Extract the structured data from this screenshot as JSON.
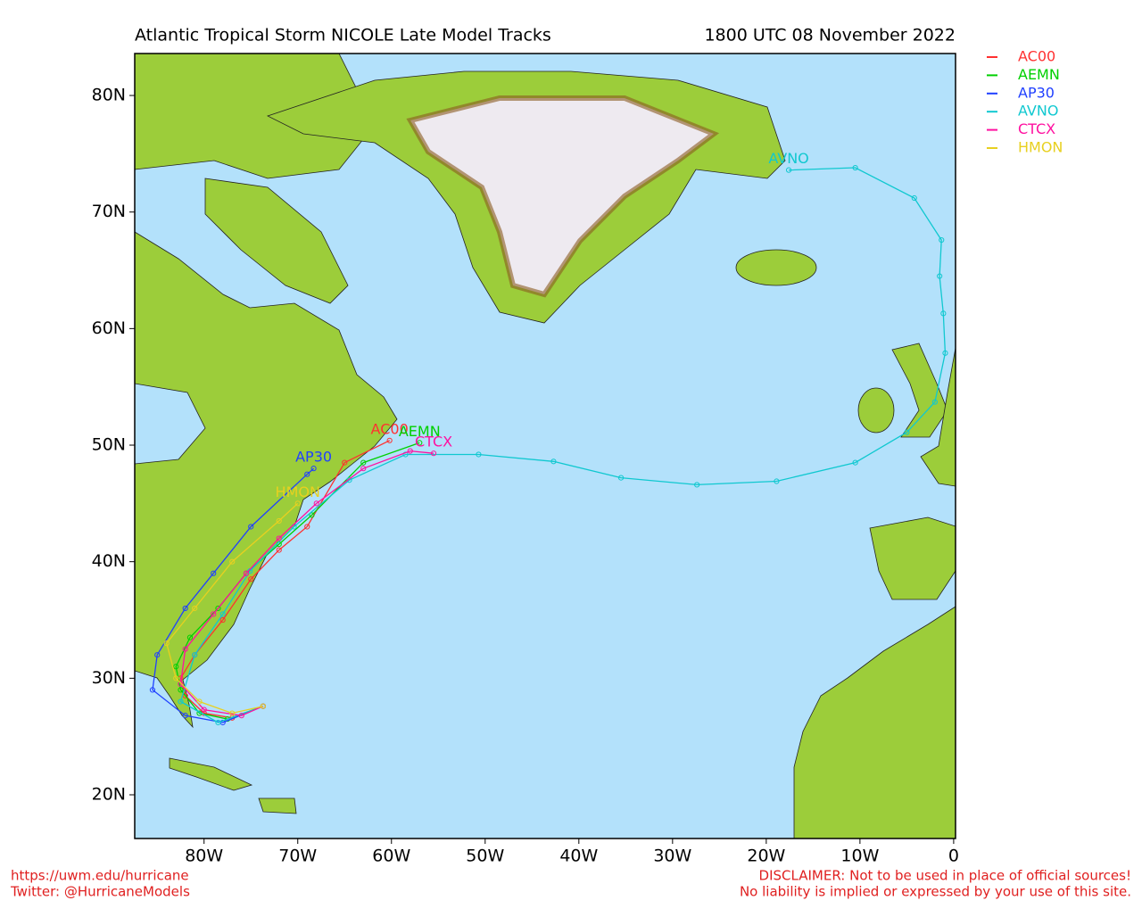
{
  "chart_data": {
    "type": "map",
    "title": "Atlantic Tropical Storm NICOLE Late Model Tracks",
    "date": "1800 UTC 08 November 2022",
    "xlim": [
      -87.4,
      0.2
    ],
    "ylim": [
      16.25,
      83.6
    ],
    "xticks": [
      {
        "value": -80,
        "label": "80W"
      },
      {
        "value": -70,
        "label": "70W"
      },
      {
        "value": -60,
        "label": "60W"
      },
      {
        "value": -50,
        "label": "50W"
      },
      {
        "value": -40,
        "label": "40W"
      },
      {
        "value": -30,
        "label": "30W"
      },
      {
        "value": -20,
        "label": "20W"
      },
      {
        "value": -10,
        "label": "10W"
      },
      0
    ],
    "yticks": [
      {
        "value": 20,
        "label": "20N"
      },
      {
        "value": 30,
        "label": "30N"
      },
      {
        "value": 40,
        "label": "40N"
      },
      {
        "value": 50,
        "label": "50N"
      },
      {
        "value": 60,
        "label": "60N"
      },
      {
        "value": 70,
        "label": "70N"
      },
      {
        "value": 80,
        "label": "80N"
      }
    ],
    "series": [
      {
        "name": "AC00",
        "color": "#ff3030",
        "x": [
          -73.7,
          -77,
          -80,
          -82,
          -82.5,
          -81,
          -78,
          -75,
          -72,
          -69,
          -65,
          -60.2
        ],
        "y": [
          27.6,
          26.6,
          27,
          28.5,
          30,
          32,
          35,
          38.5,
          41,
          43,
          48.5,
          50.4
        ]
      },
      {
        "name": "AEMN",
        "color": "#00d000",
        "x": [
          -73.7,
          -77.5,
          -80.5,
          -82.5,
          -83,
          -81.5,
          -78.5,
          -75.5,
          -72,
          -68.5,
          -63,
          -57
        ],
        "y": [
          27.6,
          26.5,
          27,
          29,
          31,
          33.5,
          36,
          39,
          41.5,
          44,
          48.5,
          50.2
        ]
      },
      {
        "name": "AP30",
        "color": "#2040ff",
        "x": [
          -73.7,
          -78,
          -82,
          -85.5,
          -85,
          -82,
          -79,
          -75,
          -69,
          -68.3
        ],
        "y": [
          27.6,
          26.2,
          26.8,
          29,
          32,
          36,
          39,
          43,
          47.5,
          48
        ]
      },
      {
        "name": "AVNO",
        "color": "#10c8d0",
        "x": [
          -73.7,
          -78.5,
          -82.5,
          -81,
          -78,
          -75.1,
          -70.4,
          -64.5,
          -58.5,
          -50.7,
          -42.7,
          -35.5,
          -27.4,
          -18.9,
          -10.5,
          -5.0,
          -2.0,
          -0.9,
          -1.1,
          -1.5,
          -1.3,
          -4.2,
          -10.5,
          -17.6
        ],
        "y": [
          27.6,
          26.2,
          28,
          32,
          35.5,
          39.2,
          43,
          47,
          49.2,
          49.2,
          48.6,
          47.2,
          46.6,
          46.9,
          48.5,
          51.1,
          53.7,
          57.9,
          61.3,
          64.5,
          67.6,
          71.2,
          73.8,
          73.6
        ]
      },
      {
        "name": "CTCX",
        "color": "#ff10a0",
        "x": [
          -73.7,
          -76,
          -80,
          -82.5,
          -82,
          -79,
          -75.5,
          -72,
          -68,
          -63,
          -58,
          -55.5
        ],
        "y": [
          27.6,
          26.8,
          27.3,
          29.5,
          32.5,
          35.5,
          39,
          42,
          45,
          48,
          49.5,
          49.3
        ]
      },
      {
        "name": "HMON",
        "color": "#e8d020",
        "x": [
          -73.7,
          -77,
          -80.5,
          -83,
          -84,
          -81,
          -77,
          -72,
          -70
        ],
        "y": [
          27.6,
          27,
          28,
          30,
          33,
          36,
          40,
          43.5,
          45
        ]
      }
    ],
    "footer_left": [
      "https://uwm.edu/hurricane",
      "Twitter: @HurricaneModels"
    ],
    "footer_right": [
      "DISCLAIMER: Not to be used in place of official sources!",
      "No liability is implied or expressed by your use of this site."
    ]
  }
}
